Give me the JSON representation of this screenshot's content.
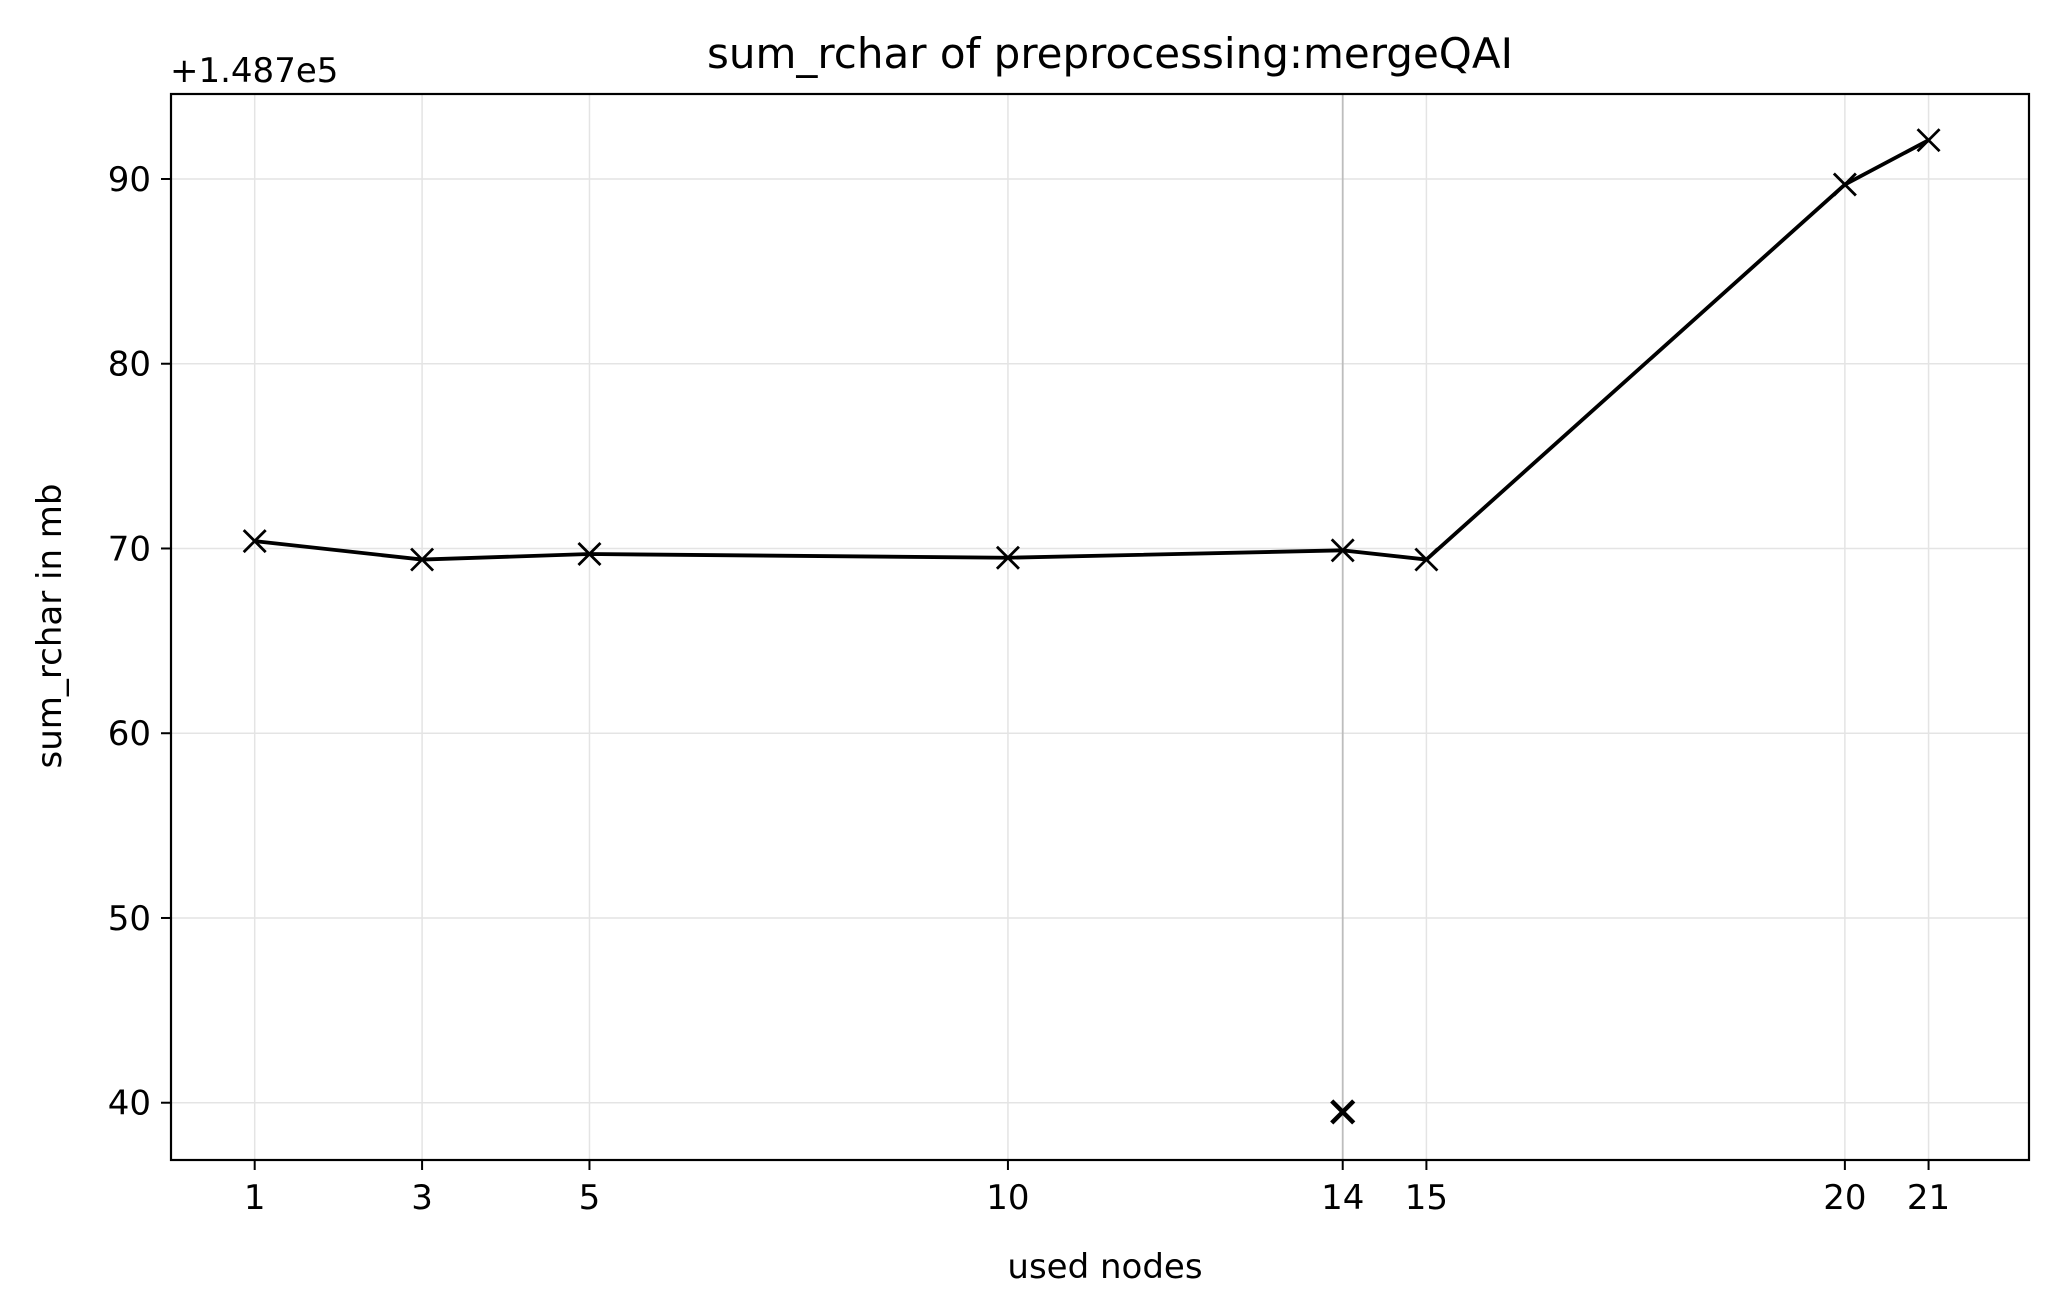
{
  "chart_data": {
    "type": "line",
    "title": "sum_rchar of preprocessing:mergeQAI",
    "xlabel": "used nodes",
    "ylabel": "sum_rchar in mb",
    "y_offset_label": "+1.487e5",
    "y_offset": 148700,
    "x_ticks": [
      1,
      3,
      5,
      10,
      14,
      15,
      20,
      21
    ],
    "y_ticks": [
      40,
      50,
      60,
      70,
      80,
      90
    ],
    "xlim": [
      0,
      22.2
    ],
    "ylim": [
      36.9,
      94.6
    ],
    "grid": true,
    "legend": "none",
    "series": [
      {
        "x": [
          1,
          3,
          5,
          10,
          14,
          15,
          20,
          21
        ],
        "y": [
          70.4,
          69.4,
          69.7,
          69.5,
          69.9,
          69.4,
          89.7,
          92.1
        ],
        "color": "#000000",
        "marker": "x"
      }
    ],
    "outliers": [
      {
        "x": 14,
        "y": 39.5,
        "marker": "x",
        "color": "#000000"
      }
    ],
    "highlight_x": 14
  }
}
